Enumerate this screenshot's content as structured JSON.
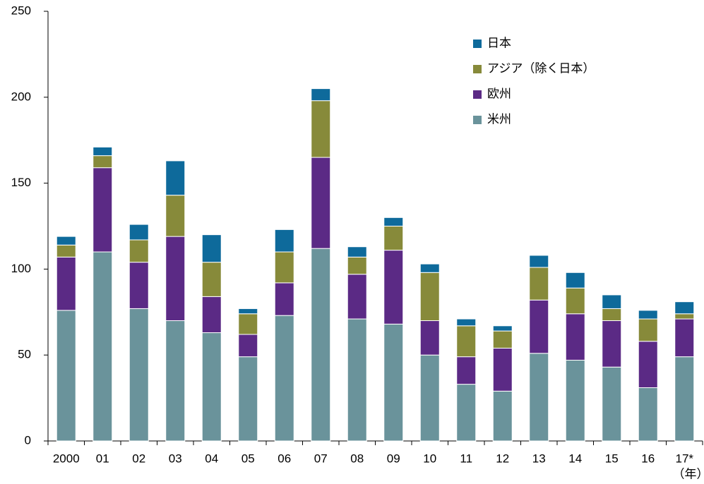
{
  "chart_data": {
    "type": "stacked_bar",
    "categories": [
      "2000",
      "01",
      "02",
      "03",
      "04",
      "05",
      "06",
      "07",
      "08",
      "09",
      "10",
      "11",
      "12",
      "13",
      "14",
      "15",
      "16",
      "17*"
    ],
    "series": [
      {
        "name": "米州",
        "color": "#6a939b",
        "values": [
          76,
          110,
          77,
          70,
          63,
          49,
          73,
          112,
          71,
          68,
          50,
          33,
          29,
          51,
          47,
          43,
          31,
          49
        ]
      },
      {
        "name": "欧州",
        "color": "#5b2a85",
        "values": [
          31,
          49,
          27,
          49,
          21,
          13,
          19,
          53,
          26,
          43,
          20,
          16,
          25,
          31,
          27,
          27,
          27,
          22
        ]
      },
      {
        "name": "アジア（除く日本）",
        "color": "#878a3a",
        "values": [
          7,
          7,
          13,
          24,
          20,
          12,
          18,
          33,
          10,
          14,
          28,
          18,
          10,
          19,
          15,
          7,
          13,
          3
        ]
      },
      {
        "name": "日本",
        "color": "#0e6a9b",
        "values": [
          5,
          5,
          9,
          20,
          16,
          3,
          13,
          7,
          6,
          5,
          5,
          4,
          3,
          7,
          9,
          8,
          5,
          7
        ]
      }
    ],
    "ylim": [
      0,
      250
    ],
    "yticks": [
      0,
      50,
      100,
      150,
      200,
      250
    ],
    "x_unit": "（年）",
    "legend": "upper right"
  }
}
